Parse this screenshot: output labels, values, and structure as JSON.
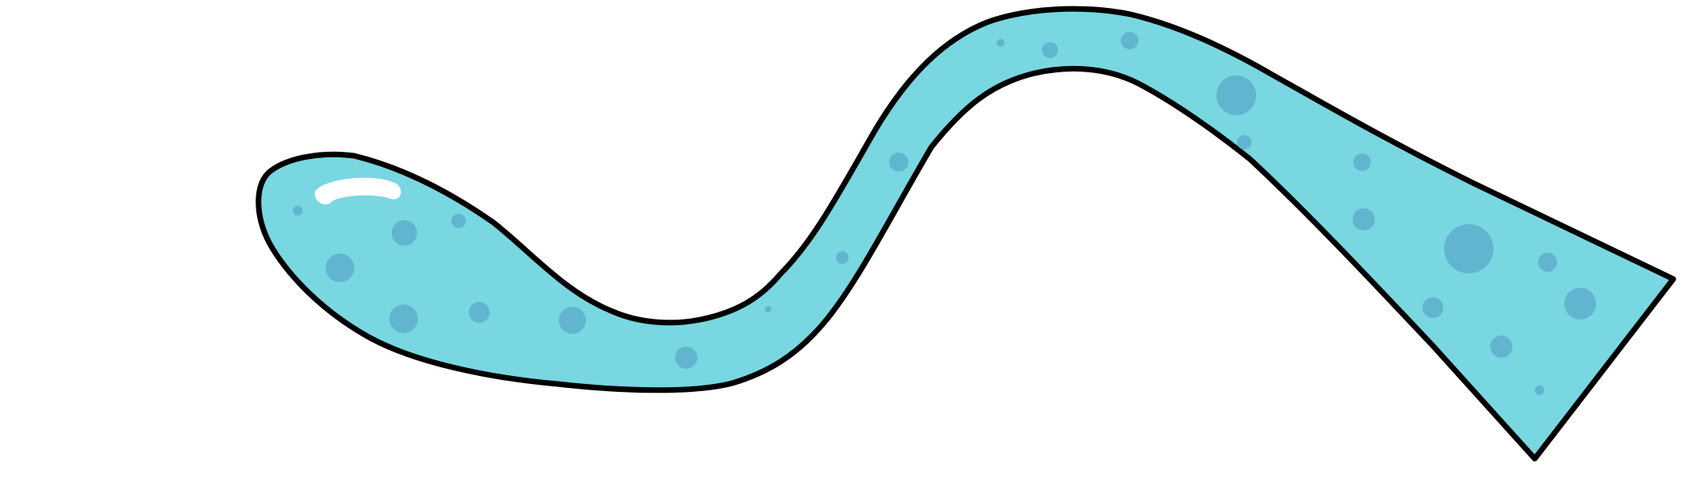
{
  "illustration": {
    "subject": "stream-shape",
    "colors": {
      "background": "#ffffff",
      "fill": "#78d7e1",
      "spots": "#61b5cf",
      "outline": "#000000",
      "highlight": "#ffffff"
    }
  }
}
